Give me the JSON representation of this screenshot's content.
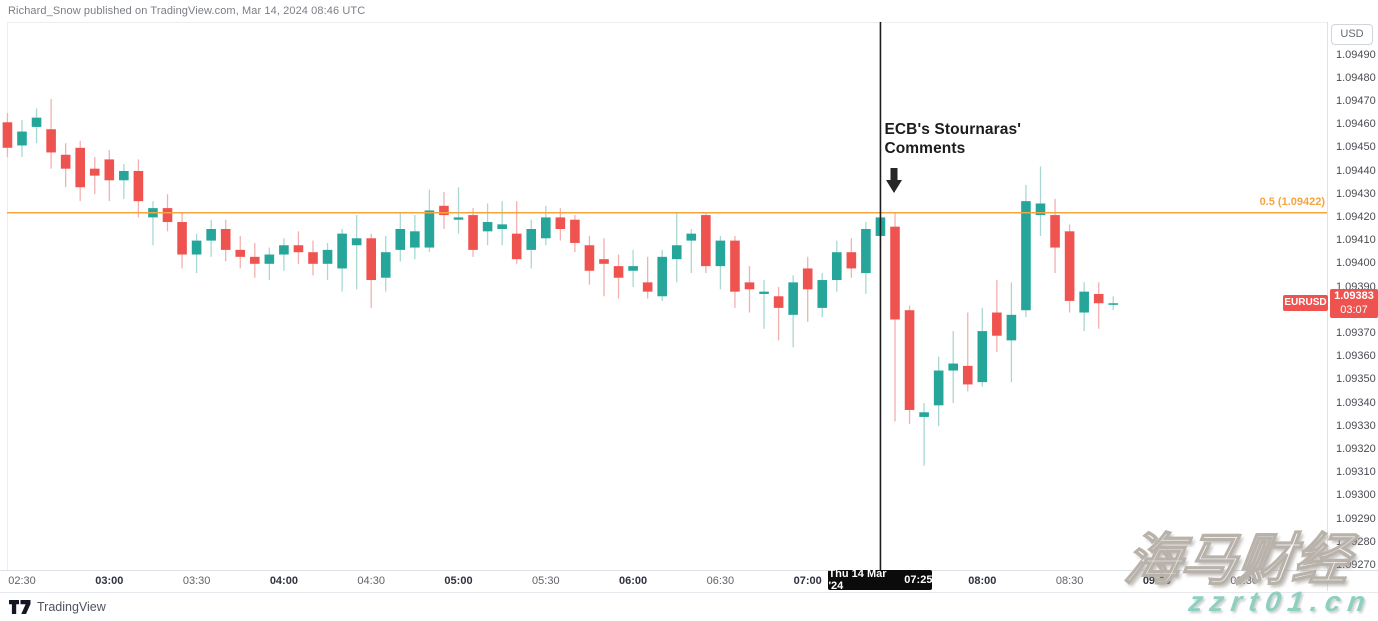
{
  "header": {
    "published_line": "Richard_Snow published on TradingView.com, Mar 14, 2024 08:46 UTC"
  },
  "chart_data": {
    "type": "candlestick",
    "symbol": "EURUSD",
    "up_color": "#26a69a",
    "down_color": "#ef5350",
    "up_wick_color": "#a9d8d2",
    "down_wick_color": "#f2b1af",
    "ylim": [
      1.0927,
      1.0949
    ],
    "xrange": [
      "02:25",
      "09:30"
    ],
    "level_line": {
      "label": "0.5 (1.09422)",
      "value": 1.09422,
      "color": "#f8a43c"
    },
    "event_line": {
      "time": "07:25",
      "label_line1": "ECB's Stournaras'",
      "label_line2": "Comments"
    },
    "last_price": 1.09383,
    "candles": [
      [
        "02:25",
        1.09461,
        1.09465,
        1.09446,
        1.0945
      ],
      [
        "02:30",
        1.09451,
        1.09462,
        1.09446,
        1.09457
      ],
      [
        "02:35",
        1.09459,
        1.09467,
        1.09452,
        1.09463
      ],
      [
        "02:40",
        1.09458,
        1.09471,
        1.09441,
        1.09448
      ],
      [
        "02:45",
        1.09447,
        1.09452,
        1.09433,
        1.09441
      ],
      [
        "02:50",
        1.0945,
        1.09453,
        1.09427,
        1.09433
      ],
      [
        "02:55",
        1.09441,
        1.09446,
        1.0943,
        1.09438
      ],
      [
        "03:00",
        1.09445,
        1.09449,
        1.09427,
        1.09436
      ],
      [
        "03:05",
        1.09436,
        1.09443,
        1.09428,
        1.0944
      ],
      [
        "03:10",
        1.0944,
        1.09445,
        1.0942,
        1.09427
      ],
      [
        "03:15",
        1.0942,
        1.09427,
        1.09408,
        1.09424
      ],
      [
        "03:20",
        1.09424,
        1.0943,
        1.09414,
        1.09418
      ],
      [
        "03:25",
        1.09418,
        1.09422,
        1.09398,
        1.09404
      ],
      [
        "03:30",
        1.09404,
        1.09413,
        1.09396,
        1.0941
      ],
      [
        "03:35",
        1.0941,
        1.09419,
        1.09403,
        1.09415
      ],
      [
        "03:40",
        1.09415,
        1.09419,
        1.09401,
        1.09406
      ],
      [
        "03:45",
        1.09406,
        1.09412,
        1.09398,
        1.09403
      ],
      [
        "03:50",
        1.09403,
        1.09409,
        1.09394,
        1.094
      ],
      [
        "03:55",
        1.094,
        1.09407,
        1.09393,
        1.09404
      ],
      [
        "04:00",
        1.09404,
        1.09411,
        1.09397,
        1.09408
      ],
      [
        "04:05",
        1.09408,
        1.09414,
        1.094,
        1.09405
      ],
      [
        "04:10",
        1.09405,
        1.0941,
        1.09395,
        1.094
      ],
      [
        "04:15",
        1.094,
        1.09409,
        1.09393,
        1.09406
      ],
      [
        "04:20",
        1.09398,
        1.09415,
        1.09388,
        1.09413
      ],
      [
        "04:25",
        1.09408,
        1.09421,
        1.09389,
        1.09411
      ],
      [
        "04:30",
        1.09411,
        1.09413,
        1.09381,
        1.09393
      ],
      [
        "04:35",
        1.09394,
        1.09412,
        1.09388,
        1.09405
      ],
      [
        "04:40",
        1.09406,
        1.09422,
        1.09401,
        1.09415
      ],
      [
        "04:45",
        1.09407,
        1.09421,
        1.09402,
        1.09414
      ],
      [
        "04:50",
        1.09407,
        1.09432,
        1.09405,
        1.09423
      ],
      [
        "04:55",
        1.09425,
        1.09431,
        1.09415,
        1.09421
      ],
      [
        "05:00",
        1.09419,
        1.09433,
        1.09413,
        1.0942
      ],
      [
        "05:05",
        1.09421,
        1.09424,
        1.09403,
        1.09406
      ],
      [
        "05:10",
        1.09414,
        1.09426,
        1.09408,
        1.09418
      ],
      [
        "05:15",
        1.09415,
        1.09427,
        1.09408,
        1.09417
      ],
      [
        "05:20",
        1.09413,
        1.09427,
        1.094,
        1.09402
      ],
      [
        "05:25",
        1.09406,
        1.09419,
        1.09398,
        1.09415
      ],
      [
        "05:30",
        1.09411,
        1.09425,
        1.09408,
        1.0942
      ],
      [
        "05:35",
        1.0942,
        1.09424,
        1.0941,
        1.09415
      ],
      [
        "05:40",
        1.09419,
        1.09421,
        1.09405,
        1.09409
      ],
      [
        "05:45",
        1.09408,
        1.09412,
        1.09391,
        1.09397
      ],
      [
        "05:50",
        1.09402,
        1.09411,
        1.09386,
        1.094
      ],
      [
        "05:55",
        1.09399,
        1.09404,
        1.09385,
        1.09394
      ],
      [
        "06:00",
        1.09397,
        1.09406,
        1.0939,
        1.09399
      ],
      [
        "06:05",
        1.09392,
        1.09403,
        1.09385,
        1.09388
      ],
      [
        "06:10",
        1.09386,
        1.09406,
        1.09384,
        1.09403
      ],
      [
        "06:15",
        1.09402,
        1.09422,
        1.09392,
        1.09408
      ],
      [
        "06:20",
        1.0941,
        1.09415,
        1.09396,
        1.09413
      ],
      [
        "06:25",
        1.09421,
        1.09422,
        1.09396,
        1.09399
      ],
      [
        "06:30",
        1.09399,
        1.09412,
        1.09389,
        1.0941
      ],
      [
        "06:35",
        1.0941,
        1.09412,
        1.09381,
        1.09388
      ],
      [
        "06:40",
        1.09392,
        1.09399,
        1.09379,
        1.09389
      ],
      [
        "06:45",
        1.09387,
        1.09393,
        1.09372,
        1.09388
      ],
      [
        "06:50",
        1.09386,
        1.0939,
        1.09367,
        1.09381
      ],
      [
        "06:55",
        1.09378,
        1.09395,
        1.09364,
        1.09392
      ],
      [
        "07:00",
        1.09398,
        1.09403,
        1.09375,
        1.09389
      ],
      [
        "07:05",
        1.09381,
        1.09396,
        1.09377,
        1.09393
      ],
      [
        "07:10",
        1.09393,
        1.0941,
        1.09388,
        1.09405
      ],
      [
        "07:15",
        1.09405,
        1.09411,
        1.09394,
        1.09398
      ],
      [
        "07:20",
        1.09396,
        1.09418,
        1.09387,
        1.09415
      ],
      [
        "07:25",
        1.09412,
        1.09423,
        1.09408,
        1.0942
      ],
      [
        "07:30",
        1.09416,
        1.09422,
        1.09332,
        1.09376
      ],
      [
        "07:35",
        1.0938,
        1.09382,
        1.09331,
        1.09337
      ],
      [
        "07:40",
        1.09334,
        1.0934,
        1.09313,
        1.09336
      ],
      [
        "07:45",
        1.09339,
        1.0936,
        1.0933,
        1.09354
      ],
      [
        "07:50",
        1.09354,
        1.09371,
        1.0934,
        1.09357
      ],
      [
        "07:55",
        1.09356,
        1.09379,
        1.09345,
        1.09348
      ],
      [
        "08:00",
        1.09349,
        1.09381,
        1.09347,
        1.09371
      ],
      [
        "08:05",
        1.09379,
        1.09393,
        1.09362,
        1.09369
      ],
      [
        "08:10",
        1.09367,
        1.09392,
        1.09349,
        1.09378
      ],
      [
        "08:15",
        1.0938,
        1.09434,
        1.09377,
        1.09427
      ],
      [
        "08:20",
        1.09421,
        1.09442,
        1.09412,
        1.09426
      ],
      [
        "08:25",
        1.09421,
        1.09428,
        1.09396,
        1.09407
      ],
      [
        "08:30",
        1.09414,
        1.09417,
        1.09379,
        1.09384
      ],
      [
        "08:35",
        1.09379,
        1.09392,
        1.09371,
        1.09388
      ],
      [
        "08:40",
        1.09387,
        1.09392,
        1.09372,
        1.09383
      ],
      [
        "08:45",
        1.09383,
        1.09386,
        1.0938,
        1.09383
      ]
    ]
  },
  "price_axis": {
    "currency_button": "USD",
    "ticks": [
      "1.09490",
      "1.09480",
      "1.09470",
      "1.09460",
      "1.09450",
      "1.09440",
      "1.09430",
      "1.09420",
      "1.09410",
      "1.09400",
      "1.09390",
      "1.09370",
      "1.09360",
      "1.09350",
      "1.09340",
      "1.09330",
      "1.09320",
      "1.09310",
      "1.09300",
      "1.09290",
      "1.09280",
      "1.09270"
    ],
    "last_price_badge": {
      "symbol": "EURUSD",
      "price": "1.09383",
      "countdown": "03:07",
      "color": "#ef5350"
    }
  },
  "time_axis": {
    "labels": [
      {
        "t": "02:30",
        "bold": false
      },
      {
        "t": "03:00",
        "bold": true
      },
      {
        "t": "03:30",
        "bold": false
      },
      {
        "t": "04:00",
        "bold": true
      },
      {
        "t": "04:30",
        "bold": false
      },
      {
        "t": "05:00",
        "bold": true
      },
      {
        "t": "05:30",
        "bold": false
      },
      {
        "t": "06:00",
        "bold": true
      },
      {
        "t": "06:30",
        "bold": false
      },
      {
        "t": "07:00",
        "bold": true
      },
      {
        "t": "08:00",
        "bold": true
      },
      {
        "t": "08:30",
        "bold": false
      },
      {
        "t": "09:00",
        "bold": true
      },
      {
        "t": "09:30",
        "bold": false
      }
    ],
    "crosshair_badge": {
      "date": "Thu 14 Mar '24",
      "time": "07:25"
    }
  },
  "footer": {
    "brand": "TradingView"
  },
  "watermark": {
    "line1": "海马财经",
    "line2": "zzrt01.cn"
  }
}
